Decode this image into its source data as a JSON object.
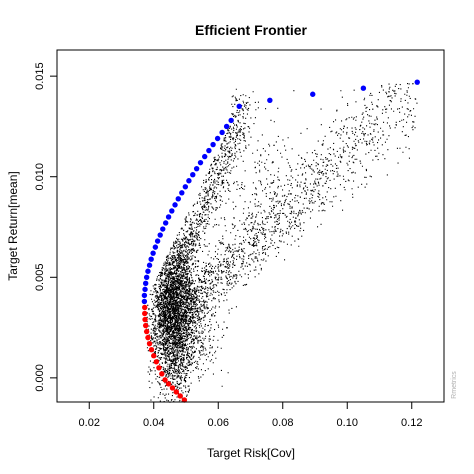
{
  "chart_data": {
    "type": "scatter",
    "title": "Efficient Frontier",
    "xlabel": "Target Risk[Cov]",
    "ylabel": "Target Return[mean]",
    "xlim": [
      0.01,
      0.13
    ],
    "ylim": [
      -0.0012,
      0.0163
    ],
    "x_ticks": [
      0.02,
      0.04,
      0.06,
      0.08,
      0.1,
      0.12
    ],
    "x_tick_labels": [
      "0.02",
      "0.04",
      "0.06",
      "0.08",
      "0.10",
      "0.12"
    ],
    "y_ticks": [
      0.0,
      0.005,
      0.01,
      0.015
    ],
    "y_tick_labels": [
      "0.000",
      "0.005",
      "0.010",
      "0.015"
    ],
    "grid": false,
    "legend": "none",
    "watermark": "Rmetrics",
    "colors": {
      "efficient": "#0000ff",
      "inefficient": "#ff0000",
      "random_portfolios": "#000000"
    },
    "series": [
      {
        "color": "#0000ff",
        "x": [
          0.0371,
          0.0371,
          0.0373,
          0.0375,
          0.0378,
          0.0382,
          0.0387,
          0.0392,
          0.0398,
          0.0405,
          0.0412,
          0.042,
          0.0428,
          0.0437,
          0.0446,
          0.0456,
          0.0466,
          0.0476,
          0.0487,
          0.0498,
          0.0509,
          0.0521,
          0.0533,
          0.0545,
          0.0558,
          0.0571,
          0.0584,
          0.0598,
          0.0612,
          0.0626,
          0.064,
          0.0665,
          0.076,
          0.0893,
          0.105,
          0.1217
        ],
        "y": [
          0.0038,
          0.0041,
          0.0044,
          0.0047,
          0.005,
          0.0053,
          0.0056,
          0.0059,
          0.0062,
          0.0065,
          0.0068,
          0.0071,
          0.0074,
          0.0077,
          0.008,
          0.0083,
          0.0086,
          0.0089,
          0.0092,
          0.0095,
          0.0098,
          0.0101,
          0.0104,
          0.0107,
          0.011,
          0.0113,
          0.0116,
          0.0119,
          0.0122,
          0.0125,
          0.0128,
          0.0135,
          0.0138,
          0.0141,
          0.0144,
          0.0147
        ]
      },
      {
        "color": "#ff0000",
        "x": [
          0.0372,
          0.0372,
          0.0373,
          0.0375,
          0.0378,
          0.0382,
          0.0387,
          0.0393,
          0.04,
          0.0408,
          0.0416,
          0.0425,
          0.0435,
          0.0446,
          0.0458,
          0.047,
          0.0482,
          0.0495
        ],
        "y": [
          0.0035,
          0.0032,
          0.0029,
          0.0026,
          0.0023,
          0.002,
          0.0017,
          0.0014,
          0.0011,
          0.0008,
          0.0005,
          0.0002,
          -0.0001,
          -0.0003,
          -0.0005,
          -0.0007,
          -0.0009,
          -0.0011
        ]
      }
    ],
    "random_portfolios": {
      "seed": 12345,
      "clusters": [
        {
          "n": 2400,
          "cx": 0.0452,
          "cy": 0.0032,
          "sx": 0.0033,
          "sy": 0.0015
        },
        {
          "n": 700,
          "cx": 0.051,
          "cy": 0.003,
          "sx": 0.0045,
          "sy": 0.0014
        },
        {
          "n": 500,
          "cx": 0.047,
          "cy": 0.0058,
          "sx": 0.0028,
          "sy": 0.0016
        },
        {
          "n": 300,
          "cx": 0.047,
          "cy": 0.0007,
          "sx": 0.0025,
          "sy": 0.0011
        }
      ],
      "bands": [
        {
          "n": 900,
          "x0": 0.045,
          "y0": 0.004,
          "x1": 0.067,
          "y1": 0.0135,
          "spread_x": 0.0022,
          "spread_y": 0.0004
        },
        {
          "n": 1100,
          "x0": 0.048,
          "y0": 0.003,
          "x1": 0.121,
          "y1": 0.0145,
          "spread_x": 0.004,
          "spread_y": 0.0008
        },
        {
          "n": 450,
          "x0": 0.052,
          "y0": 0.0035,
          "x1": 0.082,
          "y1": 0.011,
          "spread_x": 0.005,
          "spread_y": 0.0012
        }
      ]
    }
  }
}
